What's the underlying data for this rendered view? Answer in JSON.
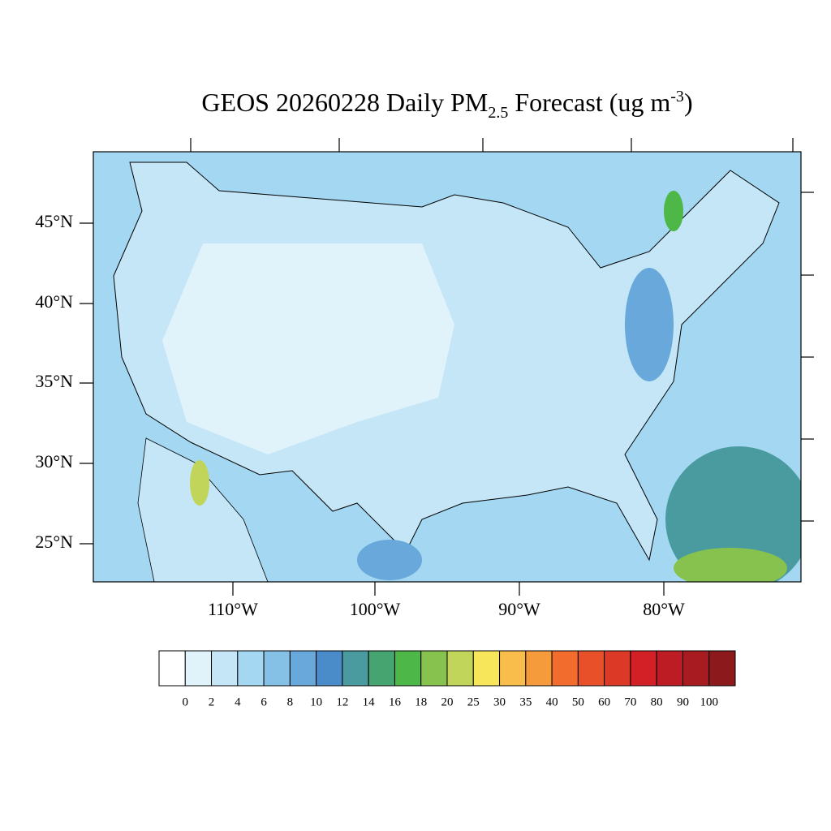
{
  "map": {
    "title": {
      "main": "GEOS 20260228 Daily PM",
      "subscript": "2.5",
      "middle": " Forecast (ug m",
      "superscript": "-3",
      "end": ")"
    },
    "lat_labels": [
      "45°N",
      "40°N",
      "35°N",
      "30°N",
      "25°N"
    ],
    "lon_labels": [
      "110°W",
      "100°W",
      "90°W",
      "80°W"
    ],
    "colorbar": {
      "labels": [
        0,
        2,
        4,
        6,
        8,
        10,
        12,
        14,
        16,
        18,
        20,
        25,
        30,
        35,
        40,
        50,
        60,
        70,
        80,
        90,
        100
      ],
      "colors": [
        "#ffffff",
        "#e0f3fb",
        "#c5e6f7",
        "#a4d8f2",
        "#85c0e6",
        "#68a8da",
        "#4a8cc9",
        "#4a9b9f",
        "#45a46f",
        "#4db748",
        "#87c24e",
        "#c1d55a",
        "#f7e65a",
        "#f8bd4a",
        "#f59b3c",
        "#f16c2d",
        "#e8502a",
        "#dc3a27",
        "#d32027",
        "#bd1c24",
        "#a81b21",
        "#8c1a1c"
      ]
    }
  }
}
